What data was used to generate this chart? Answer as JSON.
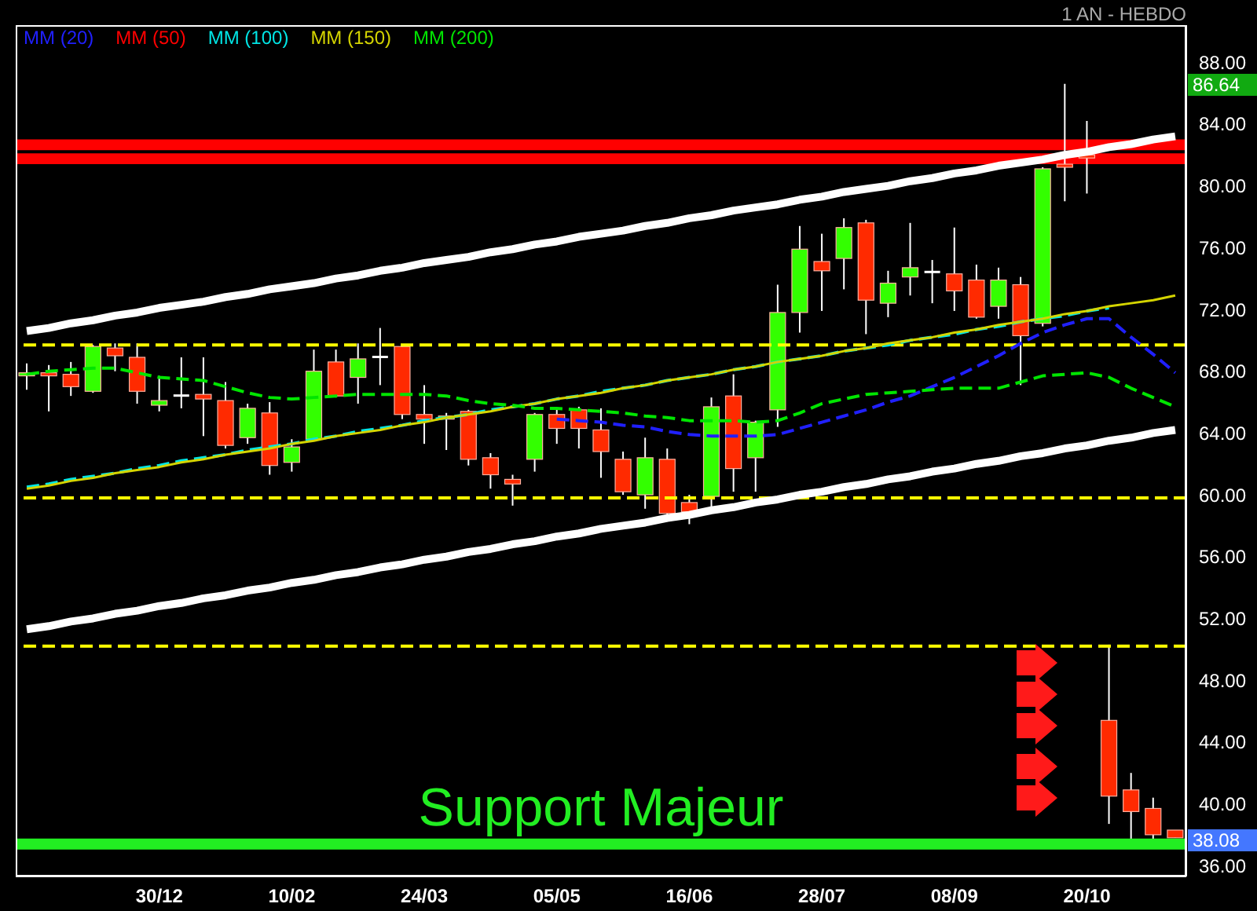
{
  "chart_data": {
    "type": "candlestick",
    "subtitle": "1 AN - HEBDO",
    "categories": [
      null,
      null,
      null,
      null,
      null,
      null,
      "30/12",
      null,
      null,
      null,
      null,
      null,
      "10/02",
      null,
      null,
      null,
      null,
      null,
      "24/03",
      null,
      null,
      null,
      null,
      null,
      "05/05",
      null,
      null,
      null,
      null,
      null,
      "16/06",
      null,
      null,
      null,
      null,
      null,
      "28/07",
      null,
      null,
      null,
      null,
      null,
      "08/09",
      null,
      null,
      null,
      null,
      null,
      "20/10",
      null,
      null,
      null,
      null
    ],
    "ohlc": [
      [
        67.7,
        68.5,
        66.8,
        67.9
      ],
      [
        67.9,
        68.4,
        65.4,
        67.7
      ],
      [
        67.8,
        68.6,
        66.4,
        67.0
      ],
      [
        66.7,
        69.7,
        66.6,
        69.6
      ],
      [
        69.5,
        69.8,
        68.0,
        69.0
      ],
      [
        68.9,
        69.8,
        65.9,
        66.7
      ],
      [
        65.8,
        67.7,
        65.4,
        66.1
      ],
      [
        66.5,
        68.9,
        65.6,
        66.5
      ],
      [
        66.5,
        68.9,
        63.8,
        66.2
      ],
      [
        66.1,
        67.3,
        63.0,
        63.2
      ],
      [
        63.7,
        65.9,
        63.3,
        65.6
      ],
      [
        65.3,
        66.0,
        61.3,
        61.9
      ],
      [
        62.1,
        63.6,
        61.5,
        63.1
      ],
      [
        63.6,
        69.4,
        63.5,
        68.0
      ],
      [
        68.6,
        69.4,
        66.3,
        66.4
      ],
      [
        67.6,
        69.8,
        65.9,
        68.8
      ],
      [
        69.0,
        70.8,
        67.1,
        69.0
      ],
      [
        69.6,
        69.7,
        64.9,
        65.2
      ],
      [
        65.2,
        67.1,
        63.3,
        64.9
      ],
      [
        64.9,
        65.3,
        62.9,
        65.1
      ],
      [
        65.4,
        65.5,
        61.9,
        62.3
      ],
      [
        62.4,
        62.7,
        60.4,
        61.3
      ],
      [
        61.0,
        61.3,
        59.3,
        60.7
      ],
      [
        62.3,
        65.3,
        61.5,
        65.2
      ],
      [
        65.2,
        65.6,
        63.3,
        64.3
      ],
      [
        65.5,
        65.7,
        63.0,
        64.3
      ],
      [
        64.2,
        65.6,
        61.1,
        62.8
      ],
      [
        62.3,
        62.8,
        60.0,
        60.2
      ],
      [
        60.0,
        63.7,
        59.1,
        62.4
      ],
      [
        62.3,
        63.0,
        58.5,
        58.8
      ],
      [
        59.5,
        60.0,
        58.1,
        58.9
      ],
      [
        59.9,
        66.3,
        59.2,
        65.7
      ],
      [
        66.4,
        67.8,
        60.2,
        61.7
      ],
      [
        62.4,
        64.8,
        60.2,
        64.7
      ],
      [
        65.5,
        73.6,
        64.4,
        71.8
      ],
      [
        71.8,
        77.4,
        70.5,
        75.9
      ],
      [
        75.1,
        76.9,
        71.9,
        74.5
      ],
      [
        75.3,
        77.9,
        73.3,
        77.3
      ],
      [
        77.6,
        77.8,
        70.4,
        72.6
      ],
      [
        72.4,
        74.5,
        71.5,
        73.7
      ],
      [
        74.1,
        77.6,
        72.9,
        74.7
      ],
      [
        74.5,
        75.2,
        72.4,
        74.5
      ],
      [
        74.3,
        77.3,
        71.9,
        73.2
      ],
      [
        73.9,
        74.9,
        71.4,
        71.5
      ],
      [
        72.2,
        74.7,
        71.4,
        73.9
      ],
      [
        73.6,
        74.1,
        67.1,
        70.3
      ],
      [
        71.1,
        81.2,
        70.9,
        81.1
      ],
      [
        81.4,
        86.6,
        79.0,
        81.2
      ],
      [
        82.0,
        84.2,
        79.5,
        81.8
      ],
      [
        45.4,
        50.3,
        38.7,
        40.5
      ],
      [
        40.9,
        42.0,
        37.6,
        39.5
      ],
      [
        39.7,
        40.4,
        37.6,
        38.0
      ],
      [
        38.3,
        38.3,
        37.8,
        37.8
      ]
    ],
    "colors": [
      "#33ff00",
      "#ff2a00",
      "#ff2a00",
      "#33ff00",
      "#ff2a00",
      "#ff2a00",
      "#33ff00",
      "#ffffff",
      "#ff2a00",
      "#ff2a00",
      "#33ff00",
      "#ff2a00",
      "#33ff00",
      "#33ff00",
      "#ff2a00",
      "#33ff00",
      "#ffffff",
      "#ff2a00",
      "#ff2a00",
      "#33ff00",
      "#ff2a00",
      "#ff2a00",
      "#ff2a00",
      "#33ff00",
      "#ff2a00",
      "#ff2a00",
      "#ff2a00",
      "#ff2a00",
      "#33ff00",
      "#ff2a00",
      "#ff2a00",
      "#33ff00",
      "#ff2a00",
      "#33ff00",
      "#33ff00",
      "#33ff00",
      "#ff2a00",
      "#33ff00",
      "#ff2a00",
      "#33ff00",
      "#33ff00",
      "#ffffff",
      "#ff2a00",
      "#ff2a00",
      "#33ff00",
      "#ff2a00",
      "#33ff00",
      "#ff2a00",
      "#ff2a00",
      "#ff2a00",
      "#ff2a00",
      "#ff2a00",
      "#ff2a00"
    ],
    "series": [
      {
        "type": "line",
        "color": "#ffffff",
        "line_style": "solid",
        "values": [
          70.6,
          70.8,
          71.1,
          71.3,
          71.6,
          71.8,
          72.1,
          72.3,
          72.5,
          72.8,
          73.0,
          73.3,
          73.5,
          73.7,
          74.0,
          74.2,
          74.5,
          74.7,
          75.0,
          75.2,
          75.4,
          75.7,
          75.9,
          76.2,
          76.4,
          76.7,
          76.9,
          77.1,
          77.4,
          77.6,
          77.9,
          78.1,
          78.4,
          78.6,
          78.8,
          79.1,
          79.3,
          79.6,
          79.8,
          80.0,
          80.3,
          80.5,
          80.8,
          81.0,
          81.3,
          81.5,
          81.7,
          82.0,
          82.2,
          82.5,
          82.7,
          83.0,
          83.2
        ]
      },
      {
        "type": "line",
        "color": "#ffffff",
        "line_style": "solid",
        "values": [
          51.3,
          51.5,
          51.8,
          52.0,
          52.3,
          52.5,
          52.8,
          53.0,
          53.3,
          53.5,
          53.8,
          54.0,
          54.3,
          54.5,
          54.8,
          55.0,
          55.3,
          55.5,
          55.8,
          56.0,
          56.3,
          56.5,
          56.8,
          57.0,
          57.3,
          57.5,
          57.8,
          58.0,
          58.2,
          58.5,
          58.7,
          59.0,
          59.2,
          59.5,
          59.7,
          60.0,
          60.2,
          60.5,
          60.7,
          61.0,
          61.2,
          61.5,
          61.7,
          62.0,
          62.2,
          62.5,
          62.7,
          63.0,
          63.2,
          63.5,
          63.7,
          64.0,
          64.2
        ]
      },
      {
        "type": "line",
        "name": "MM (20)",
        "color": "#2020ff",
        "line_style": "dashed",
        "values": [
          null,
          null,
          null,
          null,
          null,
          null,
          null,
          null,
          null,
          null,
          null,
          null,
          null,
          null,
          null,
          null,
          null,
          null,
          null,
          null,
          null,
          null,
          null,
          null,
          64.9,
          64.8,
          64.7,
          64.5,
          64.4,
          64.1,
          63.9,
          63.8,
          63.8,
          63.8,
          63.9,
          64.3,
          64.7,
          65.1,
          65.5,
          66.0,
          66.4,
          67.0,
          67.6,
          68.3,
          69.0,
          69.8,
          70.5,
          71.0,
          71.4,
          71.4,
          70.2,
          69.1,
          67.9
        ]
      },
      {
        "type": "line",
        "name": "MM (50)",
        "color": "#ff0000",
        "line_style": "dashed",
        "values": [
          null,
          null,
          null,
          null,
          null,
          null,
          null,
          null,
          null,
          null,
          null,
          null,
          null,
          null,
          null,
          null,
          null,
          null,
          null,
          null,
          null,
          null,
          null,
          null,
          null,
          null,
          null,
          null,
          null,
          null,
          null,
          null,
          null,
          null,
          null,
          null,
          null,
          null,
          null,
          null,
          null,
          null,
          null,
          null,
          null,
          null,
          null,
          null,
          null,
          null,
          null,
          null,
          null
        ]
      },
      {
        "type": "line",
        "name": "MM (100)",
        "color": "#00e5e5",
        "line_style": "dashed",
        "values": [
          60.5,
          60.7,
          61.0,
          61.2,
          61.4,
          61.7,
          61.9,
          62.2,
          62.4,
          62.6,
          62.9,
          63.1,
          63.3,
          63.6,
          63.8,
          64.1,
          64.3,
          64.5,
          64.8,
          65.0,
          65.2,
          65.5,
          65.7,
          65.9,
          66.2,
          66.4,
          66.7,
          66.9,
          67.1,
          67.4,
          67.6,
          67.8,
          68.1,
          68.3,
          68.6,
          68.8,
          69.0,
          69.3,
          69.5,
          69.7,
          70.0,
          70.2,
          70.4,
          70.7,
          70.9,
          71.2,
          71.4,
          71.6,
          71.9,
          72.1,
          null,
          null,
          null
        ]
      },
      {
        "type": "line",
        "name": "MM (150)",
        "color": "#d4d400",
        "line_style": "solid",
        "values": [
          60.4,
          60.6,
          60.9,
          61.1,
          61.4,
          61.6,
          61.8,
          62.1,
          62.3,
          62.6,
          62.8,
          63.0,
          63.3,
          63.5,
          63.8,
          64.0,
          64.2,
          64.5,
          64.7,
          65.0,
          65.2,
          65.4,
          65.7,
          65.9,
          66.2,
          66.4,
          66.6,
          66.9,
          67.1,
          67.4,
          67.6,
          67.8,
          68.1,
          68.3,
          68.6,
          68.8,
          69.0,
          69.3,
          69.5,
          69.8,
          70.0,
          70.2,
          70.5,
          70.7,
          71.0,
          71.2,
          71.4,
          71.7,
          71.9,
          72.2,
          72.4,
          72.6,
          72.9
        ]
      },
      {
        "type": "line",
        "name": "MM (200)",
        "color": "#00e500",
        "line_style": "dashed",
        "values": [
          67.8,
          68.0,
          68.1,
          68.2,
          68.2,
          67.9,
          67.6,
          67.5,
          67.4,
          67.0,
          66.6,
          66.3,
          66.2,
          66.3,
          66.4,
          66.5,
          66.5,
          66.5,
          66.5,
          66.4,
          66.1,
          65.9,
          65.8,
          65.6,
          65.6,
          65.5,
          65.4,
          65.3,
          65.1,
          65.0,
          64.8,
          64.8,
          64.8,
          64.7,
          64.8,
          65.3,
          65.9,
          66.2,
          66.5,
          66.6,
          66.7,
          66.8,
          66.9,
          66.9,
          66.9,
          67.3,
          67.7,
          67.8,
          67.9,
          67.6,
          66.9,
          66.3,
          65.7
        ]
      }
    ],
    "ylim": [
      35.3,
      90.4
    ],
    "yticks": [
      {
        "value": 36,
        "label": "36.00"
      },
      {
        "value": 40,
        "label": "40.00"
      },
      {
        "value": 44,
        "label": "44.00"
      },
      {
        "value": 48,
        "label": "48.00"
      },
      {
        "value": 52,
        "label": "52.00"
      },
      {
        "value": 56,
        "label": "56.00"
      },
      {
        "value": 60,
        "label": "60.00"
      },
      {
        "value": 64,
        "label": "64.00"
      },
      {
        "value": 68,
        "label": "68.00"
      },
      {
        "value": 72,
        "label": "72.00"
      },
      {
        "value": 76,
        "label": "76.00"
      },
      {
        "value": 80,
        "label": "80.00"
      },
      {
        "value": 84,
        "label": "84.00"
      },
      {
        "value": 88,
        "label": "88.00"
      }
    ],
    "ref_lines": [
      {
        "axis": "y",
        "value": 69.7,
        "color": "#ffff00",
        "line_style": "dashed"
      },
      {
        "axis": "y",
        "value": 59.8,
        "color": "#ffff00",
        "line_style": "dashed"
      },
      {
        "axis": "y",
        "value": 50.2,
        "color": "#ffff00",
        "line_style": "dashed"
      },
      {
        "axis": "y",
        "value": 37.4,
        "color": "#22ee22",
        "line_style": "solid",
        "label": "Support Majeur"
      }
    ],
    "bands": [
      {
        "axis": "y",
        "from": 82.3,
        "to": 83.0,
        "color": "#ff0000"
      },
      {
        "axis": "y",
        "from": 81.4,
        "to": 82.1,
        "color": "#ff0000"
      }
    ],
    "annotations": [
      "86.64",
      "38.08"
    ],
    "legend": "top left"
  }
}
